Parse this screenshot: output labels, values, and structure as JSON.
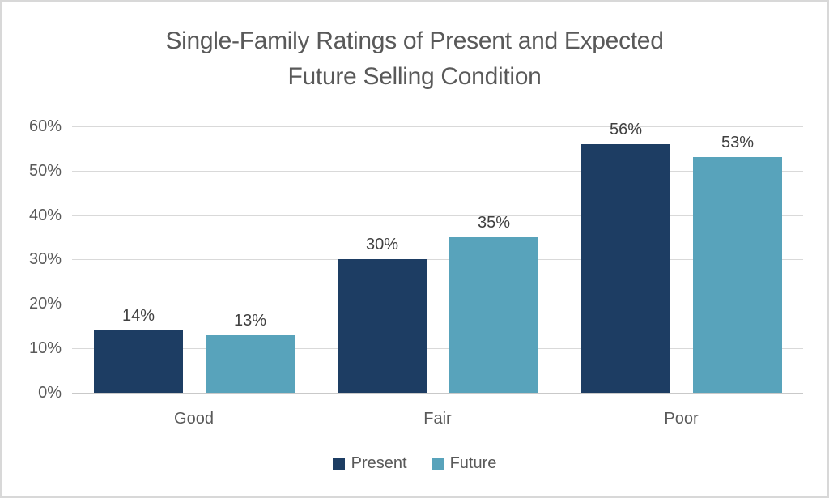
{
  "title_lines": [
    "Single-Family Ratings of Present and Expected",
    "Future Selling Condition"
  ],
  "chart_data": {
    "type": "bar",
    "title": "Single-Family Ratings of Present and Expected Future Selling Condition",
    "categories": [
      "Good",
      "Fair",
      "Poor"
    ],
    "series": [
      {
        "name": "Present",
        "color": "#1d3d63",
        "values": [
          14,
          30,
          56
        ],
        "labels": [
          "14%",
          "30%",
          "56%"
        ]
      },
      {
        "name": "Future",
        "color": "#58a3bb",
        "values": [
          13,
          35,
          53
        ],
        "labels": [
          "13%",
          "35%",
          "53%"
        ]
      }
    ],
    "xlabel": "",
    "ylabel": "",
    "ylim": [
      0,
      60
    ],
    "y_ticks": [
      "0%",
      "10%",
      "20%",
      "30%",
      "40%",
      "50%",
      "60%"
    ],
    "grid": true,
    "legend_position": "bottom",
    "value_suffix": "%"
  },
  "colors": {
    "present": "#1d3d63",
    "future": "#58a3bb",
    "gridline": "#d9d9d9",
    "text_gray": "#595959",
    "data_label": "#404040",
    "frame_border": "#d8d8d8",
    "background": "#ffffff"
  }
}
